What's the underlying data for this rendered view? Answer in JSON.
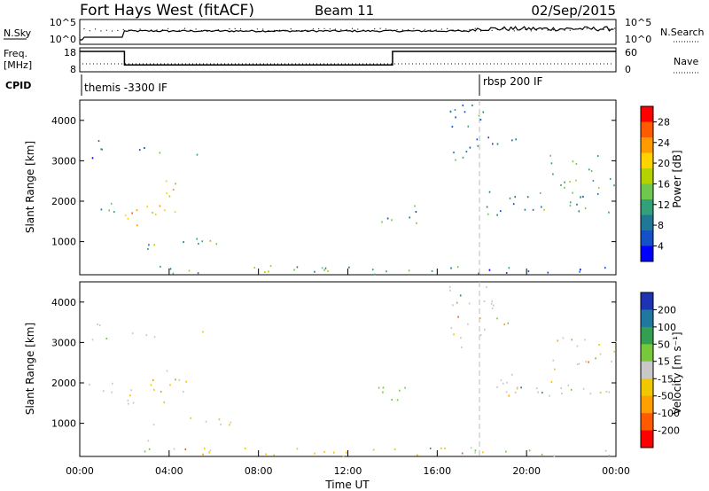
{
  "header": {
    "station": "Fort Hays West (fitACF)",
    "beam": "Beam 11",
    "date": "02/Sep/2015"
  },
  "top_panels": {
    "nsky_label": "N.Sky",
    "nsky_ticks": [
      "10^5",
      "10^0"
    ],
    "nsearch_label": "N.Search",
    "nsearch_ticks": [
      "10^5",
      "10^0"
    ],
    "freq_label_1": "Freq.",
    "freq_label_2": "[MHz]",
    "freq_ticks": [
      "18",
      "8"
    ],
    "nave_label": "Nave",
    "nave_ticks": [
      "60",
      "0"
    ],
    "cpid_label": "CPID",
    "cpid_segments": [
      {
        "label": "themis -3300 IF",
        "start_hour": 0
      },
      {
        "label": "rbsp 200 IF",
        "start_hour": 18
      }
    ],
    "freq_steps": [
      {
        "start_hour": 0,
        "end_hour": 2,
        "mhz": 18
      },
      {
        "start_hour": 2,
        "end_hour": 14,
        "mhz": 10
      },
      {
        "start_hour": 14,
        "end_hour": 24,
        "mhz": 18
      }
    ]
  },
  "panels": {
    "ylabel": "Slant Range [km]",
    "yticks": [
      "4000",
      "3000",
      "2000",
      "1000"
    ],
    "xticks": [
      "00:00",
      "04:00",
      "08:00",
      "12:00",
      "16:00",
      "20:00",
      "00:00"
    ],
    "xlabel": "Time UT"
  },
  "power_bar": {
    "label": "Power [dB]",
    "ticks": [
      "28",
      "24",
      "20",
      "16",
      "12",
      "8",
      "4"
    ],
    "colors": [
      "#ff0000",
      "#ff5a00",
      "#ff9a00",
      "#ffd200",
      "#b4d200",
      "#6ec850",
      "#32a078",
      "#1e7896",
      "#1450c8",
      "#0000ff"
    ]
  },
  "velocity_bar": {
    "label": "Velocity [m s⁻¹]",
    "ticks": [
      "200",
      "100",
      "50",
      "15",
      "-15",
      "-50",
      "-100",
      "-200"
    ],
    "colors": [
      "#1e32b4",
      "#1e78a0",
      "#32a050",
      "#78c83c",
      "#c8c8c8",
      "#f0c800",
      "#ffa000",
      "#ff5a00",
      "#ff0000"
    ]
  },
  "chart_data": {
    "type": "heatmap",
    "title": "Fort Hays West (fitACF) Beam 11 02/Sep/2015",
    "xlabel": "Time UT",
    "ylabel": "Slant Range [km]",
    "xlim_hours": [
      0,
      24
    ],
    "ylim_km": [
      180,
      4500
    ],
    "vline_hour": 18,
    "regions": [
      {
        "t0": 0.3,
        "t1": 1.2,
        "r0": 3000,
        "r1": 3600,
        "power": 8,
        "vel": 0
      },
      {
        "t0": 2.2,
        "t1": 3.6,
        "r0": 3150,
        "r1": 3500,
        "power": 10,
        "vel": 0
      },
      {
        "t0": 5.0,
        "t1": 5.8,
        "r0": 3100,
        "r1": 3350,
        "power": 7,
        "vel": -20
      },
      {
        "t0": 0.3,
        "t1": 1.8,
        "r0": 1750,
        "r1": 2100,
        "power": 12,
        "vel": 0
      },
      {
        "t0": 1.8,
        "t1": 2.8,
        "r0": 1350,
        "r1": 2000,
        "power": 24,
        "vel": 0
      },
      {
        "t0": 2.8,
        "t1": 3.8,
        "r0": 1500,
        "r1": 2200,
        "power": 21,
        "vel": -40
      },
      {
        "t0": 3.8,
        "t1": 4.8,
        "r0": 1700,
        "r1": 2600,
        "power": 19,
        "vel": 0
      },
      {
        "t0": 2.8,
        "t1": 3.4,
        "r0": 300,
        "r1": 1100,
        "power": 14,
        "vel": -30
      },
      {
        "t0": 3.8,
        "t1": 7.6,
        "r0": 950,
        "r1": 1150,
        "power": 12,
        "vel": 0
      },
      {
        "t0": 5.0,
        "t1": 6.8,
        "r0": 990,
        "r1": 1100,
        "power": 19,
        "vel": 0
      },
      {
        "t0": 2.5,
        "t1": 17.5,
        "r0": 200,
        "r1": 420,
        "power": 13,
        "vel": -25
      },
      {
        "t0": 13.3,
        "t1": 15.2,
        "r0": 1450,
        "r1": 1950,
        "power": 11,
        "vel": 30
      },
      {
        "t0": 16.5,
        "t1": 18.5,
        "r0": 2900,
        "r1": 4400,
        "power": 9,
        "vel": 0
      },
      {
        "t0": 18.0,
        "t1": 19.5,
        "r0": 3400,
        "r1": 3700,
        "power": 7,
        "vel": 0
      },
      {
        "t0": 18.2,
        "t1": 24.0,
        "r0": 1650,
        "r1": 2250,
        "power": 12,
        "vel": 0
      },
      {
        "t0": 21.0,
        "t1": 24.0,
        "r0": 2350,
        "r1": 3150,
        "power": 14,
        "vel": 0
      },
      {
        "t0": 17.5,
        "t1": 24.0,
        "r0": 200,
        "r1": 400,
        "power": 6,
        "vel": 10
      }
    ]
  }
}
